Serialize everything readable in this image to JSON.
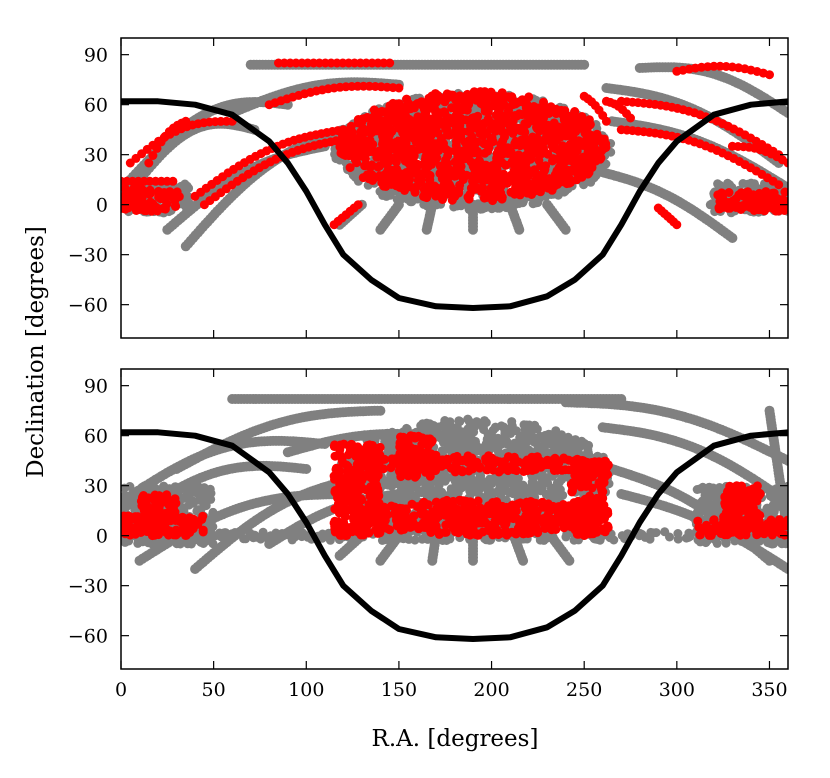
{
  "figure": {
    "xlabel": "R.A. [degrees]",
    "ylabel": "Declination [degrees]"
  },
  "colors": {
    "background_points": "#808080",
    "highlight_points": "#ff0000",
    "curve": "#000000",
    "frame": "#000000"
  },
  "chart_data": [
    {
      "type": "scatter",
      "panel": "top",
      "xlim": [
        0,
        360
      ],
      "ylim": [
        -80,
        100
      ],
      "xticks": [
        0,
        50,
        100,
        150,
        200,
        250,
        300,
        350
      ],
      "yticks": [
        -60,
        -30,
        0,
        30,
        60,
        90
      ],
      "show_xtick_labels": false,
      "curve": {
        "name": "galactic-plane",
        "x": [
          0,
          20,
          40,
          60,
          80,
          90,
          100,
          110,
          120,
          135,
          150,
          170,
          190,
          210,
          230,
          245,
          260,
          270,
          280,
          290,
          300,
          320,
          340,
          360
        ],
        "y": [
          62,
          62,
          60,
          54,
          38,
          25,
          8,
          -12,
          -30,
          -45,
          -56,
          -61,
          -62,
          -61,
          -55,
          -45,
          -30,
          -12,
          8,
          25,
          38,
          54,
          60,
          62
        ]
      },
      "blobs": [
        {
          "series": "gray",
          "ra_range": [
            115,
            265
          ],
          "dec_range": [
            -3,
            67
          ]
        },
        {
          "series": "red",
          "ra_range": [
            118,
            262
          ],
          "dec_range": [
            2,
            68
          ]
        },
        {
          "series": "gray",
          "ra_range": [
            0,
            38
          ],
          "dec_range": [
            -5,
            13
          ]
        },
        {
          "series": "gray",
          "ra_range": [
            318,
            360
          ],
          "dec_range": [
            -5,
            13
          ]
        },
        {
          "series": "red",
          "ra_range": [
            0,
            32
          ],
          "dec_range": [
            -4,
            10
          ]
        },
        {
          "series": "red",
          "ra_range": [
            322,
            360
          ],
          "dec_range": [
            -4,
            8
          ]
        }
      ],
      "tracks": [
        {
          "series": "gray",
          "ra_range": [
            5,
            72
          ],
          "dec_range": [
            8,
            45
          ],
          "bulge": 18
        },
        {
          "series": "gray",
          "ra_range": [
            5,
            90
          ],
          "dec_range": [
            15,
            60
          ],
          "bulge": 18
        },
        {
          "series": "gray",
          "ra_range": [
            25,
            110
          ],
          "dec_range": [
            -15,
            35
          ],
          "bulge": 10
        },
        {
          "series": "gray",
          "ra_range": [
            35,
            120
          ],
          "dec_range": [
            -25,
            45
          ],
          "bulge": 12
        },
        {
          "series": "gray",
          "ra_range": [
            70,
            250
          ],
          "dec_range": [
            84,
            84
          ],
          "bulge": 0
        },
        {
          "series": "gray",
          "ra_range": [
            60,
            150
          ],
          "dec_range": [
            55,
            72
          ],
          "bulge": 8
        },
        {
          "series": "red",
          "ra_range": [
            85,
            145
          ],
          "dec_range": [
            85,
            85
          ],
          "bulge": 0
        },
        {
          "series": "red",
          "ra_range": [
            80,
            150
          ],
          "dec_range": [
            60,
            70
          ],
          "bulge": 5
        },
        {
          "series": "red",
          "ra_range": [
            40,
            120
          ],
          "dec_range": [
            5,
            45
          ],
          "bulge": 8
        },
        {
          "series": "red",
          "ra_range": [
            45,
            125
          ],
          "dec_range": [
            0,
            40
          ],
          "bulge": 8
        },
        {
          "series": "red",
          "ra_range": [
            5,
            60
          ],
          "dec_range": [
            25,
            50
          ],
          "bulge": 8
        },
        {
          "series": "red",
          "ra_range": [
            15,
            35
          ],
          "dec_range": [
            25,
            50
          ],
          "bulge": 5
        },
        {
          "series": "red",
          "ra_range": [
            0,
            28
          ],
          "dec_range": [
            14,
            14
          ],
          "bulge": 0
        },
        {
          "series": "gray",
          "ra_range": [
            280,
            360
          ],
          "dec_range": [
            82,
            55
          ],
          "bulge": 10
        },
        {
          "series": "gray",
          "ra_range": [
            262,
            355
          ],
          "dec_range": [
            70,
            25
          ],
          "bulge": 10
        },
        {
          "series": "gray",
          "ra_range": [
            265,
            360
          ],
          "dec_range": [
            50,
            10
          ],
          "bulge": 8
        },
        {
          "series": "gray",
          "ra_range": [
            258,
            330
          ],
          "dec_range": [
            20,
            -20
          ],
          "bulge": 6
        },
        {
          "series": "red",
          "ra_range": [
            300,
            350
          ],
          "dec_range": [
            80,
            78
          ],
          "bulge": 4
        },
        {
          "series": "red",
          "ra_range": [
            270,
            355
          ],
          "dec_range": [
            62,
            30
          ],
          "bulge": 8
        },
        {
          "series": "red",
          "ra_range": [
            270,
            355
          ],
          "dec_range": [
            45,
            12
          ],
          "bulge": 8
        },
        {
          "series": "red",
          "ra_range": [
            330,
            360
          ],
          "dec_range": [
            35,
            25
          ],
          "bulge": 3
        },
        {
          "series": "red",
          "ra_range": [
            262,
            275
          ],
          "dec_range": [
            62,
            52
          ],
          "bulge": 2
        },
        {
          "series": "red",
          "ra_range": [
            250,
            262
          ],
          "dec_range": [
            65,
            50
          ],
          "bulge": 2
        },
        {
          "series": "red",
          "ra_range": [
            290,
            300
          ],
          "dec_range": [
            -2,
            -12
          ],
          "bulge": 0
        },
        {
          "series": "gray",
          "ra_range": [
            150,
            140
          ],
          "dec_range": [
            0,
            -15
          ],
          "bulge": 0
        },
        {
          "series": "gray",
          "ra_range": [
            168,
            165
          ],
          "dec_range": [
            0,
            -15
          ],
          "bulge": 0
        },
        {
          "series": "gray",
          "ra_range": [
            190,
            190
          ],
          "dec_range": [
            0,
            -15
          ],
          "bulge": 0
        },
        {
          "series": "gray",
          "ra_range": [
            210,
            215
          ],
          "dec_range": [
            0,
            -15
          ],
          "bulge": 0
        },
        {
          "series": "gray",
          "ra_range": [
            230,
            240
          ],
          "dec_range": [
            0,
            -15
          ],
          "bulge": 0
        },
        {
          "series": "gray",
          "ra_range": [
            130,
            118
          ],
          "dec_range": [
            0,
            -12
          ],
          "bulge": 0
        },
        {
          "series": "red",
          "ra_range": [
            128,
            115
          ],
          "dec_range": [
            0,
            -12
          ],
          "bulge": 0
        }
      ]
    },
    {
      "type": "scatter",
      "panel": "bottom",
      "xlim": [
        0,
        360
      ],
      "ylim": [
        -80,
        100
      ],
      "xticks": [
        0,
        50,
        100,
        150,
        200,
        250,
        300,
        350
      ],
      "yticks": [
        -60,
        -30,
        0,
        30,
        60,
        90
      ],
      "xtick_labels": [
        "0",
        "50",
        "100",
        "150",
        "200",
        "250",
        "300",
        "350"
      ],
      "show_xtick_labels": true,
      "curve": {
        "name": "galactic-plane",
        "x": [
          0,
          20,
          40,
          60,
          80,
          90,
          100,
          110,
          120,
          135,
          150,
          170,
          190,
          210,
          230,
          245,
          260,
          270,
          280,
          290,
          300,
          320,
          340,
          360
        ],
        "y": [
          62,
          62,
          60,
          54,
          38,
          25,
          8,
          -12,
          -30,
          -45,
          -56,
          -61,
          -62,
          -61,
          -55,
          -45,
          -30,
          -12,
          8,
          25,
          38,
          54,
          60,
          62
        ]
      },
      "blobs": [
        {
          "series": "gray",
          "ra_range": [
            115,
            265
          ],
          "dec_range": [
            0,
            70
          ]
        },
        {
          "series": "gray",
          "ra_range": [
            0,
            50
          ],
          "dec_range": [
            -5,
            30
          ]
        },
        {
          "series": "gray",
          "ra_range": [
            310,
            360
          ],
          "dec_range": [
            -5,
            30
          ]
        },
        {
          "series": "gray",
          "ra_range": [
            0,
            360
          ],
          "dec_range": [
            -3,
            3
          ]
        },
        {
          "series": "red",
          "ra_range": [
            115,
            140
          ],
          "dec_range": [
            0,
            55
          ]
        },
        {
          "series": "red",
          "ra_range": [
            125,
            262
          ],
          "dec_range": [
            0,
            22
          ]
        },
        {
          "series": "red",
          "ra_range": [
            125,
            262
          ],
          "dec_range": [
            38,
            48
          ]
        },
        {
          "series": "red",
          "ra_range": [
            243,
            263
          ],
          "dec_range": [
            0,
            45
          ]
        },
        {
          "series": "red",
          "ra_range": [
            150,
            170
          ],
          "dec_range": [
            35,
            60
          ]
        },
        {
          "series": "red",
          "ra_range": [
            0,
            45
          ],
          "dec_range": [
            0,
            12
          ]
        },
        {
          "series": "red",
          "ra_range": [
            10,
            30
          ],
          "dec_range": [
            10,
            25
          ]
        },
        {
          "series": "red",
          "ra_range": [
            310,
            360
          ],
          "dec_range": [
            0,
            10
          ]
        },
        {
          "series": "red",
          "ra_range": [
            325,
            345
          ],
          "dec_range": [
            5,
            30
          ]
        }
      ],
      "tracks": [
        {
          "series": "gray",
          "ra_range": [
            60,
            270
          ],
          "dec_range": [
            82,
            82
          ],
          "bulge": 0
        },
        {
          "series": "gray",
          "ra_range": [
            30,
            140
          ],
          "dec_range": [
            40,
            75
          ],
          "bulge": 10
        },
        {
          "series": "gray",
          "ra_range": [
            0,
            110
          ],
          "dec_range": [
            20,
            55
          ],
          "bulge": 15
        },
        {
          "series": "gray",
          "ra_range": [
            0,
            100
          ],
          "dec_range": [
            5,
            40
          ],
          "bulge": 15
        },
        {
          "series": "gray",
          "ra_range": [
            10,
            120
          ],
          "dec_range": [
            -15,
            25
          ],
          "bulge": 12
        },
        {
          "series": "gray",
          "ra_range": [
            40,
            130
          ],
          "dec_range": [
            -20,
            35
          ],
          "bulge": 10
        },
        {
          "series": "gray",
          "ra_range": [
            80,
            150
          ],
          "dec_range": [
            -5,
            25
          ],
          "bulge": 6
        },
        {
          "series": "gray",
          "ra_range": [
            90,
            170
          ],
          "dec_range": [
            50,
            60
          ],
          "bulge": 5
        },
        {
          "series": "gray",
          "ra_range": [
            240,
            360
          ],
          "dec_range": [
            80,
            45
          ],
          "bulge": 10
        },
        {
          "series": "gray",
          "ra_range": [
            260,
            360
          ],
          "dec_range": [
            65,
            20
          ],
          "bulge": 10
        },
        {
          "series": "gray",
          "ra_range": [
            265,
            350
          ],
          "dec_range": [
            40,
            -15
          ],
          "bulge": 8
        },
        {
          "series": "gray",
          "ra_range": [
            270,
            360
          ],
          "dec_range": [
            25,
            -20
          ],
          "bulge": 6
        },
        {
          "series": "gray",
          "ra_range": [
            350,
            360
          ],
          "dec_range": [
            75,
            0
          ],
          "bulge": 0
        },
        {
          "series": "gray",
          "ra_range": [
            150,
            140
          ],
          "dec_range": [
            0,
            -15
          ],
          "bulge": 0
        },
        {
          "series": "gray",
          "ra_range": [
            170,
            168
          ],
          "dec_range": [
            0,
            -15
          ],
          "bulge": 0
        },
        {
          "series": "gray",
          "ra_range": [
            190,
            190
          ],
          "dec_range": [
            0,
            -15
          ],
          "bulge": 0
        },
        {
          "series": "gray",
          "ra_range": [
            212,
            217
          ],
          "dec_range": [
            0,
            -15
          ],
          "bulge": 0
        },
        {
          "series": "gray",
          "ra_range": [
            232,
            242
          ],
          "dec_range": [
            0,
            -15
          ],
          "bulge": 0
        },
        {
          "series": "gray",
          "ra_range": [
            130,
            118
          ],
          "dec_range": [
            0,
            -12
          ],
          "bulge": 0
        }
      ]
    }
  ]
}
